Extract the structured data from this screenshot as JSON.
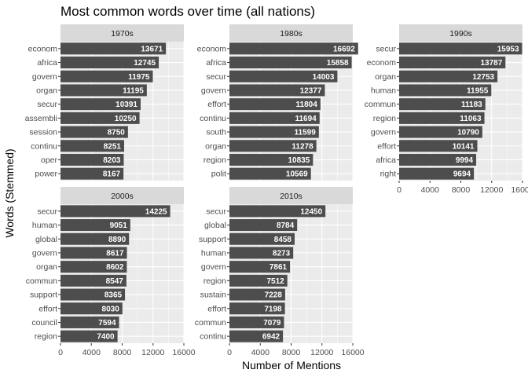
{
  "chart_data": {
    "type": "bar",
    "orientation": "horizontal",
    "title": "Most common words over time (all nations)",
    "xlabel": "Number of Mentions",
    "ylabel": "Words (Stemmed)",
    "xlim": [
      0,
      16000
    ],
    "xticks": [
      0,
      4000,
      8000,
      12000,
      16000
    ],
    "grid": true,
    "colors": {
      "bar": "#4d4d4d",
      "panel": "#ebebeb",
      "strip": "#d9d9d9",
      "grid_major": "#ffffff",
      "value_label": "#ffffff"
    },
    "panels": [
      {
        "label": "1970s",
        "categories": [
          "econom",
          "africa",
          "govern",
          "organ",
          "secur",
          "assembli",
          "session",
          "continu",
          "oper",
          "power"
        ],
        "values": [
          13671,
          12745,
          11975,
          11195,
          10391,
          10250,
          8750,
          8251,
          8203,
          8167
        ]
      },
      {
        "label": "1980s",
        "categories": [
          "econom",
          "africa",
          "secur",
          "govern",
          "effort",
          "continu",
          "south",
          "organ",
          "region",
          "polit"
        ],
        "values": [
          16692,
          15858,
          14003,
          12377,
          11804,
          11694,
          11599,
          11278,
          10835,
          10569
        ]
      },
      {
        "label": "1990s",
        "categories": [
          "secur",
          "econom",
          "organ",
          "human",
          "commun",
          "region",
          "govern",
          "effort",
          "africa",
          "right"
        ],
        "values": [
          15953,
          13787,
          12753,
          11955,
          11183,
          11063,
          10790,
          10141,
          9994,
          9694
        ]
      },
      {
        "label": "2000s",
        "categories": [
          "secur",
          "human",
          "global",
          "govern",
          "organ",
          "commun",
          "support",
          "effort",
          "council",
          "region"
        ],
        "values": [
          14225,
          9051,
          8890,
          8617,
          8602,
          8547,
          8365,
          8030,
          7594,
          7400
        ]
      },
      {
        "label": "2010s",
        "categories": [
          "secur",
          "global",
          "support",
          "human",
          "govern",
          "region",
          "sustain",
          "effort",
          "commun",
          "continu"
        ],
        "values": [
          12450,
          8784,
          8458,
          8273,
          7861,
          7512,
          7228,
          7198,
          7079,
          6942
        ]
      }
    ]
  }
}
